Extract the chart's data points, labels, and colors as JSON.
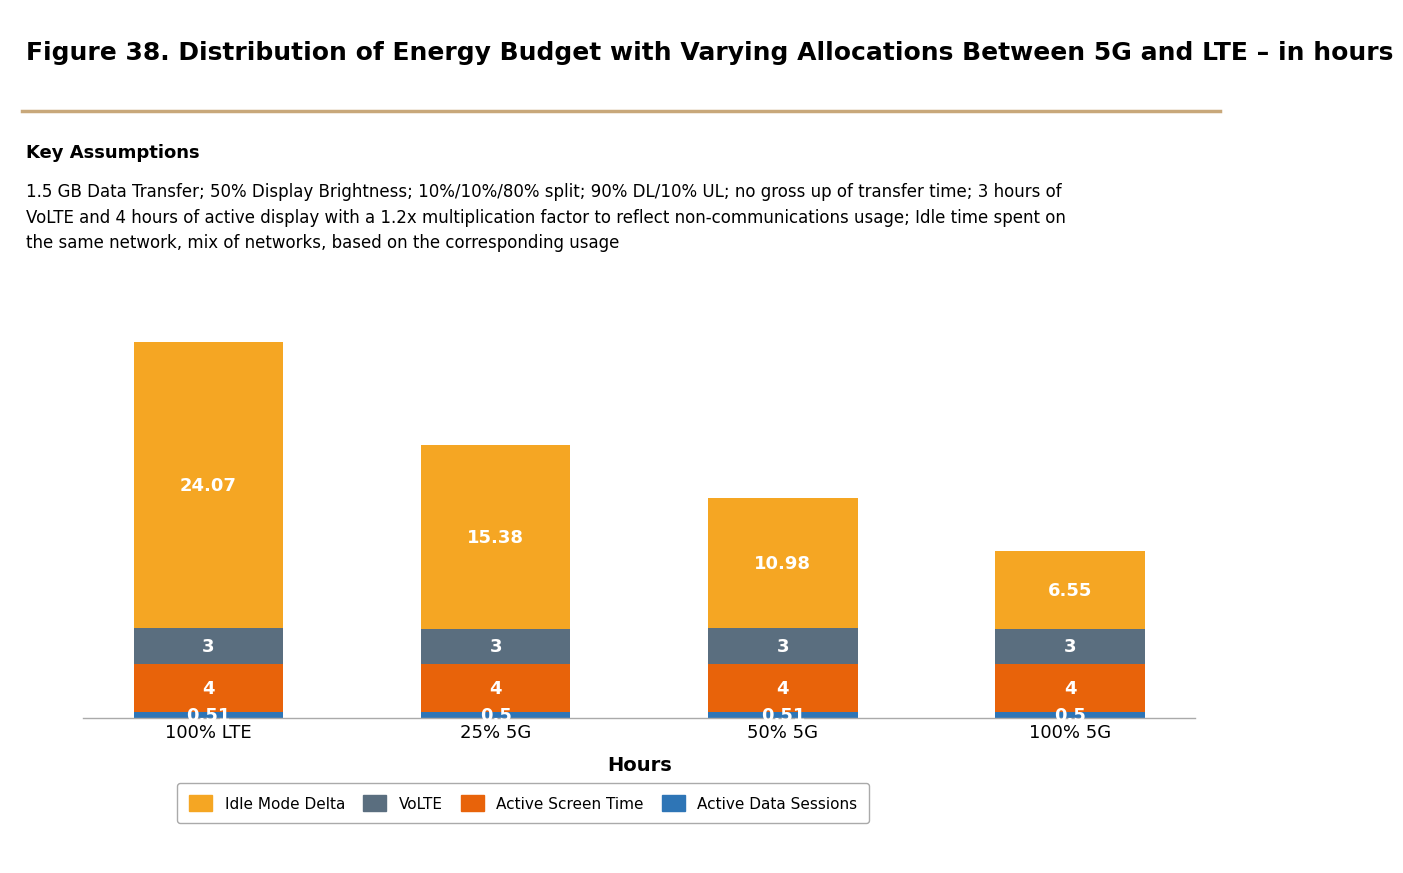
{
  "title": "Figure 38. Distribution of Energy Budget with Varying Allocations Between 5G and LTE – in hours",
  "key_assumptions_title": "Key Assumptions",
  "key_assumptions_text": "1.5 GB Data Transfer; 50% Display Brightness; 10%/10%/80% split; 90% DL/10% UL; no gross up of transfer time; 3 hours of\nVoLTE and 4 hours of active display with a 1.2x multiplication factor to reflect non-communications usage; Idle time spent on\nthe same network, mix of networks, based on the corresponding usage",
  "categories": [
    "100% LTE",
    "25% 5G",
    "50% 5G",
    "100% 5G"
  ],
  "xlabel": "Hours",
  "layers": [
    {
      "label": "Active Data Sessions",
      "color": "#2E75B6",
      "values": [
        0.51,
        0.5,
        0.51,
        0.5
      ]
    },
    {
      "label": "Active Screen Time",
      "color": "#E8630A",
      "values": [
        4,
        4,
        4,
        4
      ]
    },
    {
      "label": "VoLTE",
      "color": "#5A6E7F",
      "values": [
        3,
        3,
        3,
        3
      ]
    },
    {
      "label": "Idle Mode Delta",
      "color": "#F5A623",
      "values": [
        24.07,
        15.38,
        10.98,
        6.55
      ]
    }
  ],
  "bar_labels": [
    [
      "0.51",
      "0.5",
      "0.51",
      "0.5"
    ],
    [
      "4",
      "4",
      "4",
      "4"
    ],
    [
      "3",
      "3",
      "3",
      "3"
    ],
    [
      "24.07",
      "15.38",
      "10.98",
      "6.55"
    ]
  ],
  "legend_order": [
    3,
    2,
    1,
    0
  ],
  "background_color": "#FFFFFF",
  "assumptions_bg": "#DCDCDC",
  "title_fontsize": 18,
  "assump_title_fontsize": 13,
  "assump_text_fontsize": 12,
  "bar_label_fontsize": 13,
  "bar_width": 0.52,
  "ylim": [
    0,
    33
  ],
  "title_line_color": "#C8A87A",
  "legend_fontsize": 11
}
